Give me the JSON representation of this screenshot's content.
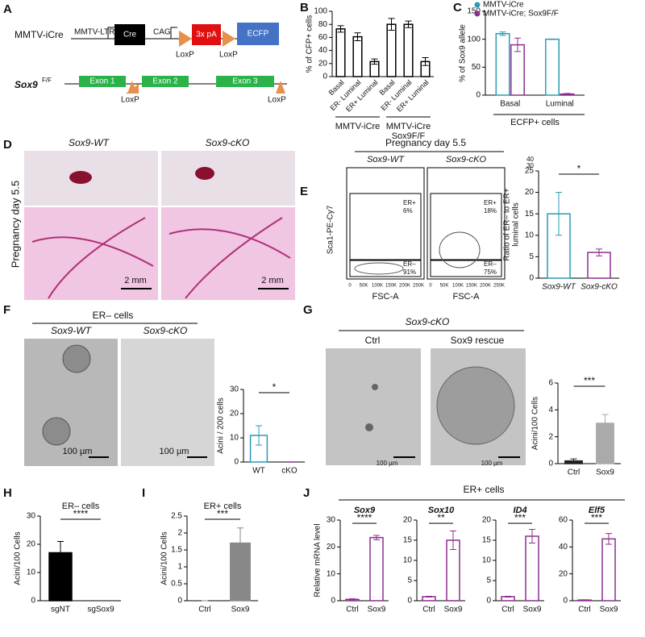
{
  "panel_labels": [
    "A",
    "B",
    "C",
    "D",
    "E",
    "F",
    "G",
    "H",
    "I",
    "J"
  ],
  "panel_a": {
    "construct_name": "MMTV-iCre",
    "elements": [
      "MMTV-LTR",
      "Cre",
      "CAG",
      "3x pA",
      "ECFP"
    ],
    "loxp": [
      "LoxP",
      "LoxP"
    ],
    "allele_gene": "Sox9",
    "allele_sup": "F/F",
    "exons": [
      "Exon 1",
      "Exon 2",
      "Exon 3"
    ],
    "allele_loxp": [
      "LoxP",
      "LoxP"
    ]
  },
  "panel_d": {
    "labels": [
      "Sox9-WT",
      "Sox9-cKO"
    ],
    "side": "Pregnancy day 5.5",
    "scale": [
      "2 mm",
      "2 mm"
    ]
  },
  "panel_e": {
    "title": "Pregnancy day 5.5",
    "labels": [
      "Sox9-WT",
      "Sox9-cKO"
    ],
    "gates": [
      [
        "ER+",
        "6%",
        "ER–",
        "91%"
      ],
      [
        "ER+",
        "18%",
        "ER–",
        "75%"
      ]
    ],
    "y_label": "Sca1-PE-Cy7",
    "x_labels": [
      "FSC-A",
      "FSC-A"
    ],
    "x_ticks": [
      "0",
      "50K",
      "100K",
      "150K",
      "200K",
      "250K"
    ]
  },
  "panel_f": {
    "title": "ER– cells",
    "labels": [
      "Sox9-WT",
      "Sox9-cKO"
    ],
    "scale": [
      "100 µm",
      "100 µm"
    ]
  },
  "panel_g": {
    "title": "Sox9-cKO",
    "labels": [
      "Ctrl",
      "Sox9 rescue"
    ],
    "scale": [
      "100 µm",
      "100 µm"
    ]
  },
  "panel_j": {
    "title": "ER+ cells"
  },
  "chart_data": [
    {
      "type": "bar",
      "y_label": "% of CFP+ cells",
      "categories": [
        "Basal",
        "ER- Luminal",
        "ER+ Luminal",
        "Basal",
        "ER- Luminal",
        "ER+ Luminal"
      ],
      "group_labels": [
        [
          "MMTV-iCre"
        ],
        [
          "MMTV-iCre",
          "Sox9F/F"
        ]
      ],
      "series": [
        {
          "color": "#000000",
          "fill": "#ffffff",
          "values": [
            73,
            61,
            23,
            80,
            80,
            23
          ],
          "errors": [
            5,
            6,
            4,
            9,
            5,
            6
          ]
        }
      ],
      "ylim": [
        0,
        100
      ],
      "yticks": [
        0,
        20,
        40,
        60,
        80,
        100
      ]
    },
    {
      "type": "bar",
      "y_label": "% of Sox9 allele",
      "x_label": "ECFP+ cells",
      "categories": [
        "Basal",
        "Luminal"
      ],
      "series": [
        {
          "name": "MMTV-iCre",
          "color": "#2a9bb5",
          "fill": "#ffffff",
          "values": [
            110,
            100
          ],
          "errors": [
            3,
            0.5
          ]
        },
        {
          "name": "MMTV-iCre; Sox9F/F",
          "color": "#8c2f8f",
          "fill": "#ffffff",
          "values": [
            90,
            2
          ],
          "errors": [
            12,
            1
          ]
        }
      ],
      "ylim": [
        0,
        150
      ],
      "yticks": [
        0,
        50,
        100,
        150
      ]
    },
    {
      "type": "bar",
      "y_label": [
        "Ratio of ER– to ER+",
        "luminal cells"
      ],
      "categories": [
        "Sox9-WT",
        "Sox9-cKO"
      ],
      "series": [
        {
          "colors": [
            "#2a9bb5",
            "#8c2f8f"
          ],
          "fill": "#ffffff",
          "values": [
            15,
            6
          ],
          "errors": [
            5,
            0.8
          ]
        }
      ],
      "ylim": [
        0,
        25
      ],
      "yticks": [
        0,
        5,
        10,
        15,
        20,
        25
      ],
      "ybreak_ticks": [
        30,
        40
      ],
      "sig": "*"
    },
    {
      "type": "bar",
      "y_label": "Acini / 200 cells",
      "categories": [
        "WT",
        "cKO"
      ],
      "series": [
        {
          "colors": [
            "#2a9bb5",
            "#8c2f8f"
          ],
          "fill": "#ffffff",
          "values": [
            11,
            0
          ],
          "errors": [
            4,
            0.1
          ]
        }
      ],
      "ylim": [
        0,
        30
      ],
      "yticks": [
        0,
        10,
        20,
        30
      ],
      "sig": "*"
    },
    {
      "type": "bar",
      "y_label": "Acini/100 Cells",
      "categories": [
        "Ctrl",
        "Sox9"
      ],
      "series": [
        {
          "colors": [
            "#222222",
            "#aaaaaa"
          ],
          "fills": [
            "#222222",
            "#aaaaaa"
          ],
          "values": [
            0.2,
            3
          ],
          "errors": [
            0.15,
            0.65
          ]
        }
      ],
      "ylim": [
        0,
        6
      ],
      "yticks": [
        0,
        2,
        4,
        6
      ],
      "sig": "***"
    },
    {
      "type": "bar",
      "title": "ER– cells",
      "y_label": "Acini/100 Cells",
      "categories": [
        "sgNT",
        "sgSox9"
      ],
      "series": [
        {
          "color": "#000000",
          "fill": "#000000",
          "values": [
            17,
            0
          ],
          "errors": [
            4,
            0
          ]
        }
      ],
      "ylim": [
        0,
        30
      ],
      "yticks": [
        0,
        10,
        20,
        30
      ],
      "sig": "****"
    },
    {
      "type": "bar",
      "title": "ER+ cells",
      "y_label": "Acini/100 Cells",
      "categories": [
        "Ctrl",
        "Sox9"
      ],
      "series": [
        {
          "color": "#888888",
          "fill": "#888888",
          "values": [
            0,
            1.7
          ],
          "errors": [
            0,
            0.45
          ]
        }
      ],
      "ylim": [
        0,
        2.5
      ],
      "yticks": [
        0,
        0.5,
        1,
        1.5,
        2,
        2.5
      ],
      "sig": "***"
    },
    {
      "type": "bar",
      "title": "Sox9",
      "y_label": "Relative mRNA level",
      "categories": [
        "Ctrl",
        "Sox9"
      ],
      "series": [
        {
          "color": "#8c2f8f",
          "fill": "#ffffff",
          "values": [
            0.5,
            23.5
          ],
          "errors": [
            0.2,
            0.8
          ]
        }
      ],
      "ylim": [
        0,
        30
      ],
      "yticks": [
        0,
        10,
        20,
        30
      ],
      "sig": "****"
    },
    {
      "type": "bar",
      "title": "Sox10",
      "categories": [
        "Ctrl",
        "Sox9"
      ],
      "series": [
        {
          "color": "#8c2f8f",
          "fill": "#ffffff",
          "values": [
            1,
            15
          ],
          "errors": [
            0.1,
            2.3
          ]
        }
      ],
      "ylim": [
        0,
        20
      ],
      "yticks": [
        0,
        5,
        10,
        15,
        20
      ],
      "sig": "**"
    },
    {
      "type": "bar",
      "title": "ID4",
      "categories": [
        "Ctrl",
        "Sox9"
      ],
      "series": [
        {
          "color": "#8c2f8f",
          "fill": "#ffffff",
          "values": [
            1,
            16
          ],
          "errors": [
            0.1,
            1.7
          ]
        }
      ],
      "ylim": [
        0,
        20
      ],
      "yticks": [
        0,
        5,
        10,
        15,
        20
      ],
      "sig": "***"
    },
    {
      "type": "bar",
      "title": "Elf5",
      "categories": [
        "Ctrl",
        "Sox9"
      ],
      "series": [
        {
          "color": "#8c2f8f",
          "fill": "#ffffff",
          "values": [
            0.5,
            46
          ],
          "errors": [
            0.2,
            4
          ]
        }
      ],
      "ylim": [
        0,
        60
      ],
      "yticks": [
        0,
        20,
        40,
        60
      ],
      "sig": "***"
    }
  ]
}
